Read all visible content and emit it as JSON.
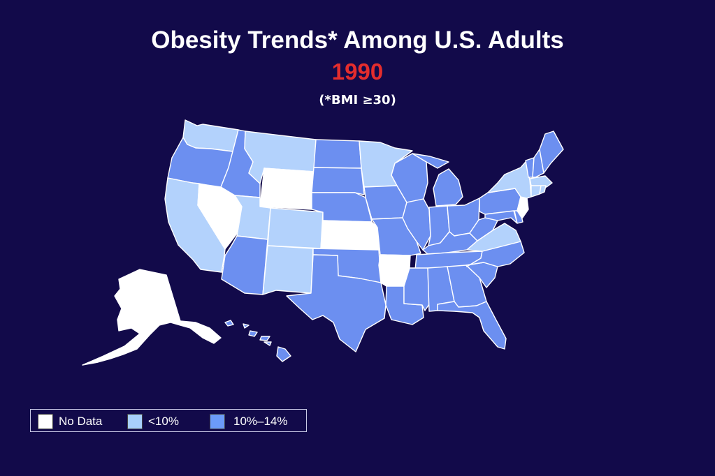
{
  "title": "Obesity Trends* Among U.S. Adults",
  "year": "1990",
  "subtitle": "(*BMI ≥30)",
  "colors": {
    "background": "#120a4a",
    "year_text": "#e52d2d",
    "no_data": "#ffffff",
    "lt10": "#b3d2fc",
    "p10_14": "#6c8ff0"
  },
  "legend": [
    {
      "label": "No Data",
      "color": "#ffffff"
    },
    {
      "label": "<10%",
      "color": "#a8d0fb"
    },
    {
      "label": "10%–14%",
      "color": "#6c9bf8"
    }
  ],
  "state_categories": {
    "no_data": [
      "Alaska",
      "Nevada",
      "Wyoming",
      "Kansas",
      "Arkansas",
      "New Jersey"
    ],
    "lt10": [
      "Washington",
      "Montana",
      "California",
      "Utah",
      "Colorado",
      "New Mexico",
      "Minnesota",
      "Virginia",
      "New York",
      "Connecticut",
      "Massachusetts",
      "Rhode Island"
    ],
    "p10_14": [
      "Oregon",
      "Idaho",
      "Arizona",
      "North Dakota",
      "South Dakota",
      "Nebraska",
      "Oklahoma",
      "Texas",
      "Iowa",
      "Missouri",
      "Louisiana",
      "Wisconsin",
      "Illinois",
      "Michigan",
      "Indiana",
      "Ohio",
      "Kentucky",
      "Tennessee",
      "Mississippi",
      "Alabama",
      "Georgia",
      "Florida",
      "South Carolina",
      "North Carolina",
      "West Virginia",
      "Pennsylvania",
      "Maryland",
      "Delaware",
      "Vermont",
      "New Hampshire",
      "Maine",
      "Hawaii"
    ]
  }
}
